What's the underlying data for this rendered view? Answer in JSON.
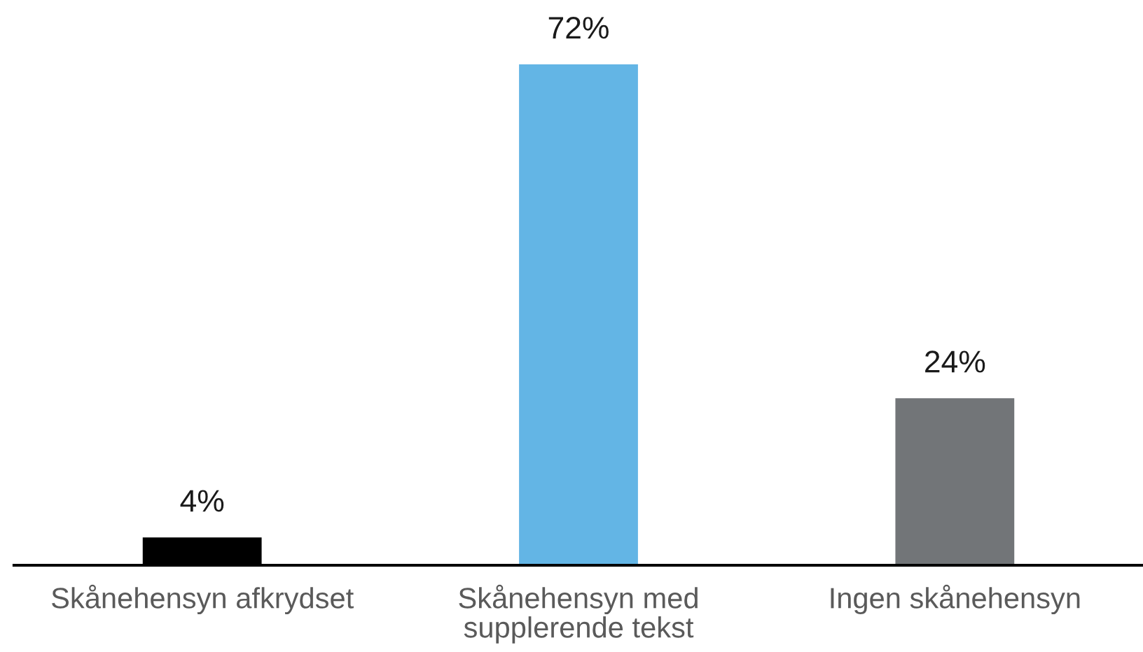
{
  "chart_data": {
    "type": "bar",
    "categories": [
      "Skånehensyn afkrydset",
      "Skånehensyn med\nsupplerende tekst",
      "Ingen skånehensyn"
    ],
    "values": [
      4,
      72,
      24
    ],
    "colors": [
      "#000000",
      "#63b5e5",
      "#727578"
    ],
    "value_labels": [
      "4%",
      "72%",
      "24%"
    ]
  }
}
